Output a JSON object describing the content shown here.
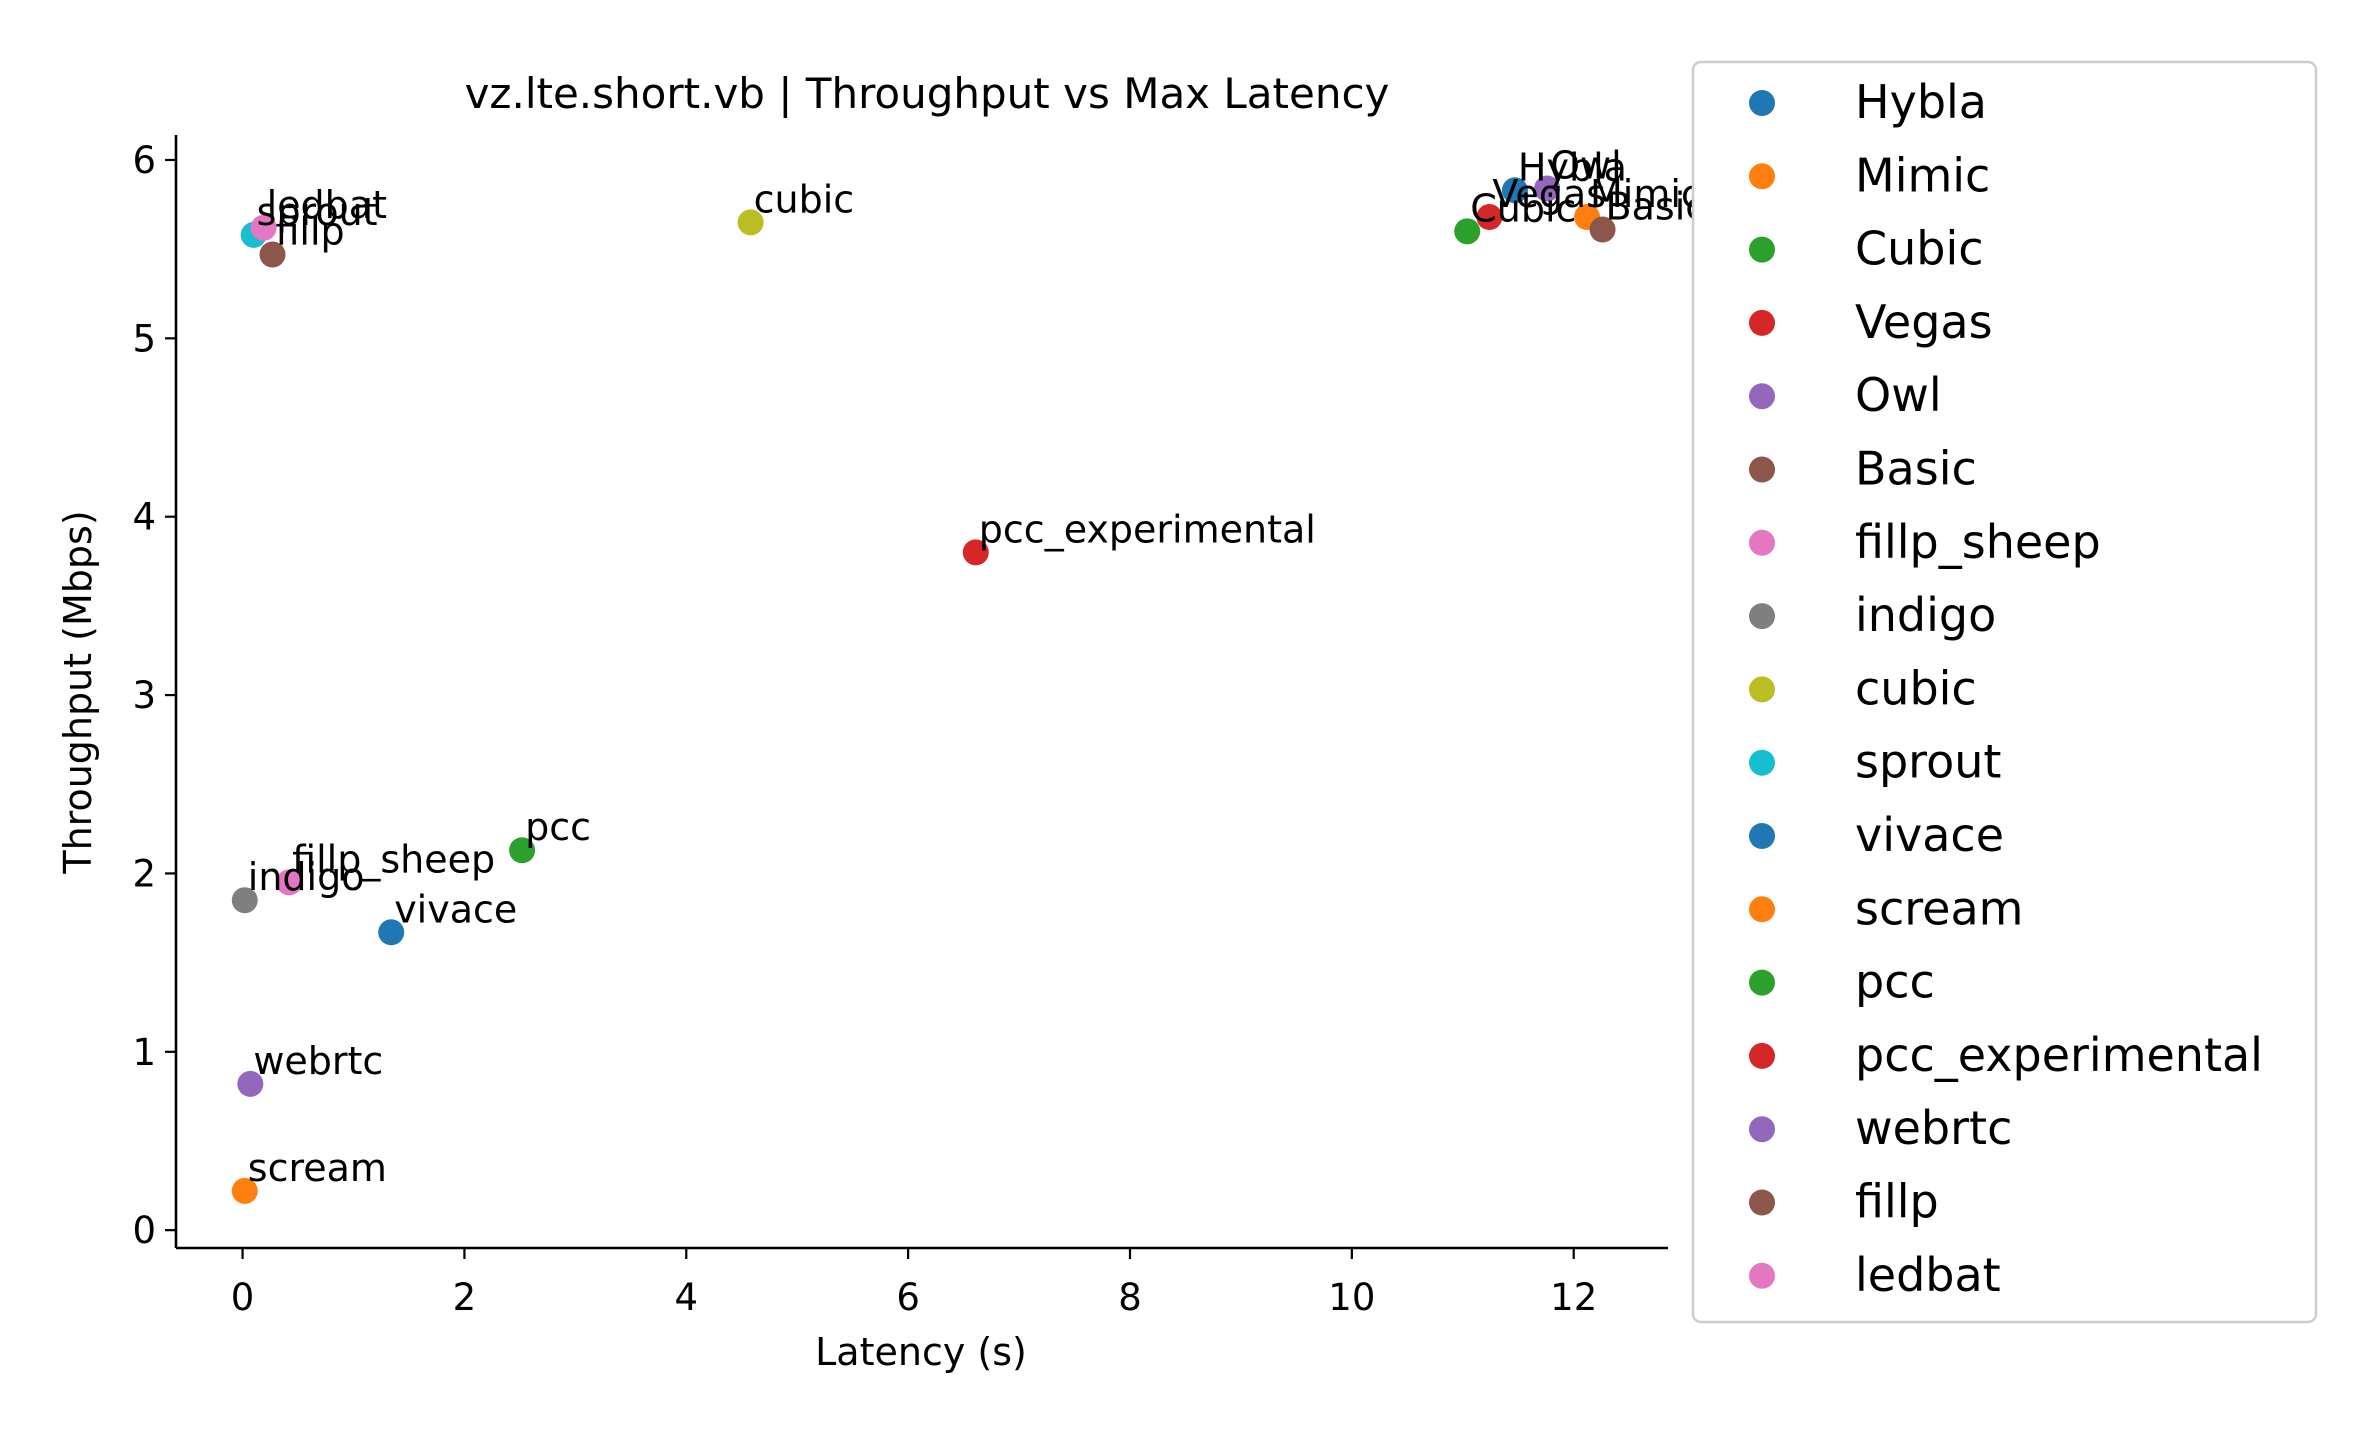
{
  "chart_data": {
    "type": "scatter",
    "title": "vz.lte.short.vb | Throughput vs Max Latency",
    "xlabel": "Latency (s)",
    "ylabel": "Throughput (Mbps)",
    "xlim": [
      -0.6,
      12.85
    ],
    "ylim": [
      -0.1,
      6.14
    ],
    "xticks": [
      0,
      2,
      4,
      6,
      8,
      10,
      12
    ],
    "yticks": [
      0,
      1,
      2,
      3,
      4,
      5,
      6
    ],
    "grid": false,
    "legend_position": "outside-right",
    "series": [
      {
        "name": "Hybla",
        "color": "#1f77b4",
        "x": 11.47,
        "y": 5.83
      },
      {
        "name": "Mimic",
        "color": "#ff7f0e",
        "x": 12.12,
        "y": 5.68
      },
      {
        "name": "Cubic",
        "color": "#2ca02c",
        "x": 11.04,
        "y": 5.6
      },
      {
        "name": "Vegas",
        "color": "#d62728",
        "x": 11.24,
        "y": 5.68
      },
      {
        "name": "Owl",
        "color": "#9467bd",
        "x": 11.76,
        "y": 5.84
      },
      {
        "name": "Basic",
        "color": "#8c564b",
        "x": 12.26,
        "y": 5.61
      },
      {
        "name": "fillp_sheep",
        "color": "#e377c2",
        "x": 0.42,
        "y": 1.95
      },
      {
        "name": "indigo",
        "color": "#7f7f7f",
        "x": 0.02,
        "y": 1.85
      },
      {
        "name": "cubic",
        "color": "#bcbd22",
        "x": 4.58,
        "y": 5.65
      },
      {
        "name": "sprout",
        "color": "#17becf",
        "x": 0.1,
        "y": 5.58
      },
      {
        "name": "vivace",
        "color": "#1f77b4",
        "x": 1.34,
        "y": 1.67
      },
      {
        "name": "scream",
        "color": "#ff7f0e",
        "x": 0.02,
        "y": 0.22
      },
      {
        "name": "pcc",
        "color": "#2ca02c",
        "x": 2.52,
        "y": 2.13
      },
      {
        "name": "pcc_experimental",
        "color": "#d62728",
        "x": 6.61,
        "y": 3.8
      },
      {
        "name": "webrtc",
        "color": "#9467bd",
        "x": 0.07,
        "y": 0.82
      },
      {
        "name": "fillp",
        "color": "#8c564b",
        "x": 0.27,
        "y": 5.47
      },
      {
        "name": "ledbat",
        "color": "#e377c2",
        "x": 0.19,
        "y": 5.62
      }
    ]
  }
}
